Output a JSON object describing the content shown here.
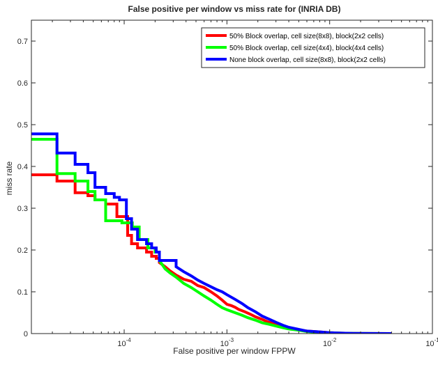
{
  "chart_data": {
    "type": "line",
    "title": "False positive per window vs miss rate for (INRIA DB)",
    "xlabel": "False positive per window FPPW",
    "ylabel": "miss rate",
    "xscale": "log",
    "xlim": [
      1.25e-05,
      0.1
    ],
    "ylim": [
      0,
      0.75
    ],
    "grid": false,
    "legend_position": "top-right",
    "x_ticks": [
      {
        "value": 0.0001,
        "base": "10",
        "exp": "-4"
      },
      {
        "value": 0.001,
        "base": "10",
        "exp": "-3"
      },
      {
        "value": 0.01,
        "base": "10",
        "exp": "-2"
      },
      {
        "value": 0.1,
        "base": "10",
        "exp": "-1"
      }
    ],
    "y_ticks": [
      "0",
      "0.1",
      "0.2",
      "0.3",
      "0.4",
      "0.5",
      "0.6",
      "0.7"
    ],
    "series": [
      {
        "name": "50% Block overlap, cell size(8x8), block(2x2 cells)",
        "color": "#ff0000",
        "x": [
          1.25e-05,
          2.22e-05,
          2.22e-05,
          3.33e-05,
          3.33e-05,
          4.44e-05,
          4.44e-05,
          5.2e-05,
          5.2e-05,
          6.6e-05,
          6.6e-05,
          8.5e-05,
          8.5e-05,
          0.000108,
          0.000108,
          0.000118,
          0.000118,
          0.000135,
          0.000135,
          0.000165,
          0.000165,
          0.000185,
          0.000185,
          0.000205,
          0.000205,
          0.00022,
          0.00022,
          0.00025,
          0.00028,
          0.00032,
          0.00038,
          0.00045,
          0.00052,
          0.0006,
          0.0007,
          0.0008,
          0.0009,
          0.001,
          0.0011,
          0.0012,
          0.0013,
          0.0015,
          0.0017,
          0.0019,
          0.0022,
          0.0025,
          0.003,
          0.0035,
          0.004,
          0.005,
          0.006,
          0.008,
          0.01,
          0.013,
          0.017,
          0.025,
          0.04
        ],
        "y": [
          0.38,
          0.38,
          0.365,
          0.365,
          0.337,
          0.337,
          0.33,
          0.33,
          0.32,
          0.32,
          0.31,
          0.31,
          0.28,
          0.28,
          0.235,
          0.235,
          0.215,
          0.215,
          0.205,
          0.205,
          0.195,
          0.195,
          0.185,
          0.185,
          0.18,
          0.18,
          0.17,
          0.16,
          0.15,
          0.14,
          0.13,
          0.125,
          0.115,
          0.11,
          0.1,
          0.09,
          0.08,
          0.07,
          0.067,
          0.063,
          0.058,
          0.052,
          0.046,
          0.04,
          0.034,
          0.028,
          0.022,
          0.017,
          0.013,
          0.009,
          0.006,
          0.004,
          0.002,
          0.001,
          0.0005,
          0.0002,
          0.0
        ]
      },
      {
        "name": "50% Block overlap, cell size(4x4), block(4x4 cells)",
        "color": "#00ff00",
        "x": [
          1.25e-05,
          2.22e-05,
          2.22e-05,
          3.33e-05,
          3.33e-05,
          4.44e-05,
          4.44e-05,
          5.2e-05,
          5.2e-05,
          6.6e-05,
          6.6e-05,
          9.5e-05,
          9.5e-05,
          0.00012,
          0.00012,
          0.00014,
          0.00014,
          0.00017,
          0.00017,
          0.0002,
          0.0002,
          0.00022,
          0.00022,
          0.00025,
          0.00028,
          0.00032,
          0.00038,
          0.00045,
          0.00052,
          0.0006,
          0.0007,
          0.0008,
          0.0009,
          0.001,
          0.0012,
          0.0014,
          0.0016,
          0.0019,
          0.0022,
          0.0026,
          0.003,
          0.0035,
          0.004,
          0.005,
          0.006,
          0.008,
          0.01,
          0.013,
          0.017,
          0.025,
          0.04
        ],
        "y": [
          0.465,
          0.465,
          0.383,
          0.383,
          0.365,
          0.365,
          0.34,
          0.34,
          0.32,
          0.32,
          0.27,
          0.27,
          0.265,
          0.265,
          0.255,
          0.255,
          0.225,
          0.225,
          0.205,
          0.205,
          0.195,
          0.195,
          0.175,
          0.155,
          0.145,
          0.135,
          0.12,
          0.11,
          0.1,
          0.09,
          0.08,
          0.07,
          0.062,
          0.057,
          0.05,
          0.044,
          0.038,
          0.032,
          0.026,
          0.022,
          0.018,
          0.014,
          0.011,
          0.008,
          0.005,
          0.003,
          0.002,
          0.001,
          0.0005,
          0.0002,
          0.0
        ]
      },
      {
        "name": "None block overlap, cell size(8x8), block(2x2 cells)",
        "color": "#0000ff",
        "x": [
          1.25e-05,
          2.22e-05,
          2.22e-05,
          3.33e-05,
          3.33e-05,
          4.44e-05,
          4.44e-05,
          5.2e-05,
          5.2e-05,
          6.6e-05,
          6.6e-05,
          8e-05,
          8e-05,
          9e-05,
          9e-05,
          0.000105,
          0.000105,
          0.000118,
          0.000118,
          0.000135,
          0.000135,
          0.000165,
          0.000165,
          0.000185,
          0.000185,
          0.000205,
          0.000205,
          0.00022,
          0.00022,
          0.00032,
          0.00032,
          0.00038,
          0.00045,
          0.00052,
          0.0006,
          0.0007,
          0.0008,
          0.0009,
          0.001,
          0.0012,
          0.0014,
          0.0016,
          0.0019,
          0.0022,
          0.0026,
          0.003,
          0.0035,
          0.004,
          0.005,
          0.006,
          0.008,
          0.01,
          0.013,
          0.017,
          0.025,
          0.04
        ],
        "y": [
          0.478,
          0.478,
          0.432,
          0.432,
          0.405,
          0.405,
          0.385,
          0.385,
          0.35,
          0.35,
          0.335,
          0.335,
          0.326,
          0.326,
          0.32,
          0.32,
          0.275,
          0.275,
          0.25,
          0.25,
          0.225,
          0.225,
          0.215,
          0.215,
          0.205,
          0.205,
          0.195,
          0.195,
          0.175,
          0.175,
          0.16,
          0.148,
          0.138,
          0.128,
          0.12,
          0.112,
          0.105,
          0.1,
          0.093,
          0.082,
          0.072,
          0.062,
          0.052,
          0.042,
          0.034,
          0.027,
          0.02,
          0.015,
          0.01,
          0.006,
          0.004,
          0.002,
          0.001,
          0.0005,
          0.0002,
          0.0
        ]
      }
    ]
  }
}
